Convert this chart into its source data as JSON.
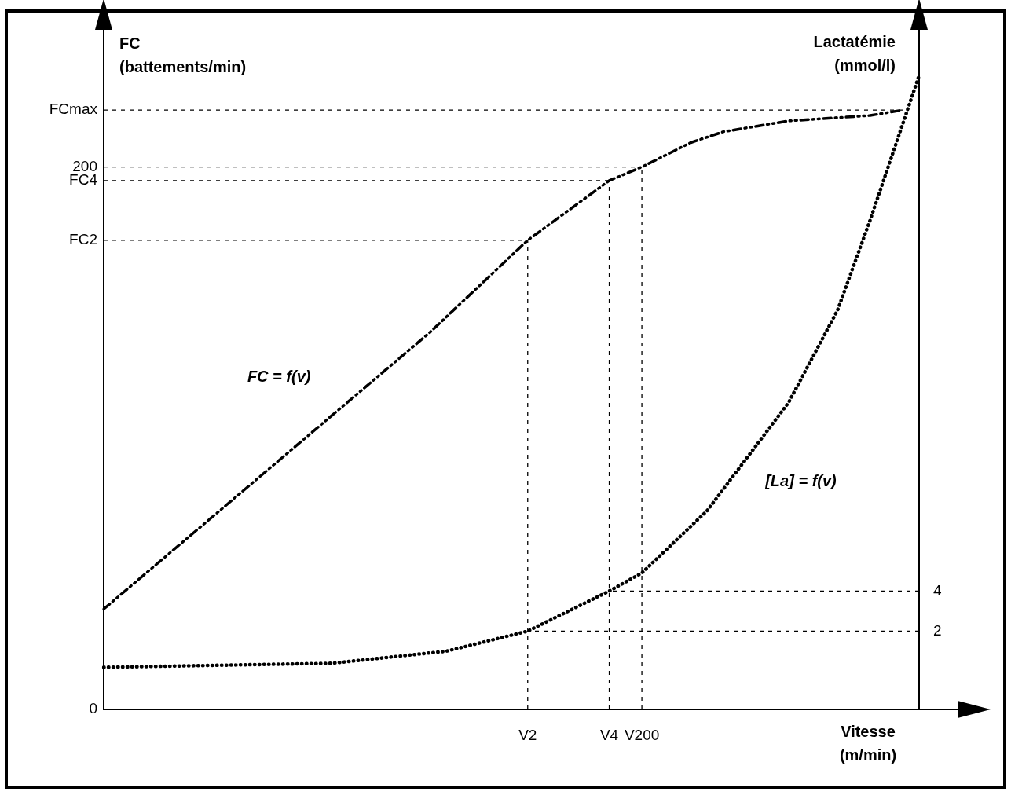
{
  "chart_data": {
    "type": "line",
    "ylabel": "FC\n(battements/min)",
    "y2label": "Lactatémie\n(mmol/l)",
    "xlabel": "Vitesse\n(m/min)",
    "categories": [
      null,
      null,
      null,
      null,
      null,
      null,
      null,
      null,
      null,
      null,
      null,
      null,
      null,
      null,
      null,
      null,
      null,
      null,
      null,
      null,
      null,
      null,
      null,
      null,
      null,
      null,
      "V2",
      null,
      null,
      null,
      null,
      "V4",
      null,
      "V200",
      null,
      null,
      null,
      null,
      null,
      null,
      null,
      null,
      null,
      null,
      null,
      null,
      null,
      null,
      null,
      null,
      null
    ],
    "ylim": [
      0,
      250
    ],
    "yticks": [
      0,
      {
        "value": 173,
        "label": "FC2"
      },
      {
        "value": 195,
        "label": "FC4"
      },
      200,
      {
        "value": 221,
        "label": "FCmax"
      }
    ],
    "y2lim": [
      -1.9,
      31.9
    ],
    "y2ticks": [
      4,
      2
    ],
    "legend": false,
    "marker": "none",
    "ref_lines": [
      {
        "axis": "y",
        "value": 221,
        "color": "#000000",
        "line_style": "dashed"
      },
      {
        "axis": "y",
        "value": 200,
        "color": "#000000",
        "line_style": "dashed"
      },
      {
        "axis": "y",
        "value": 195,
        "color": "#000000",
        "line_style": "dashed"
      },
      {
        "axis": "y",
        "value": 173,
        "color": "#000000",
        "line_style": "dashed"
      },
      {
        "axis": "x",
        "value": "V2",
        "color": "#000000",
        "line_style": "dashed"
      },
      {
        "axis": "x",
        "value": "V4",
        "color": "#000000",
        "line_style": "dashed"
      },
      {
        "axis": "x",
        "value": "V200",
        "color": "#000000",
        "line_style": "dashed"
      },
      {
        "axis": "y2",
        "value": 4,
        "color": "#000000",
        "line_style": "dashed"
      },
      {
        "axis": "y2",
        "value": 2,
        "color": "#000000",
        "line_style": "dashed"
      }
    ],
    "annotations": [
      "FC = f(v)",
      "[La] = f(v)"
    ],
    "series": [
      {
        "color": "#000000",
        "line_style": "dashed",
        "values": [
          37,
          null,
          null,
          null,
          null,
          null,
          null,
          null,
          null,
          null,
          88,
          null,
          null,
          null,
          null,
          null,
          null,
          null,
          null,
          null,
          139,
          null,
          null,
          null,
          null,
          null,
          173,
          null,
          null,
          null,
          null,
          195,
          null,
          200,
          null,
          null,
          209,
          null,
          213,
          null,
          null,
          null,
          217,
          null,
          null,
          null,
          null,
          219,
          null,
          221,
          null
        ]
      },
      {
        "color": "#000000",
        "line_style": "dotted",
        "axis": "y2",
        "values": [
          0.2,
          null,
          null,
          null,
          null,
          null,
          null,
          null,
          null,
          null,
          null,
          null,
          null,
          null,
          0.4,
          null,
          null,
          null,
          null,
          null,
          null,
          1.0,
          null,
          null,
          null,
          null,
          2,
          null,
          null,
          null,
          null,
          4,
          null,
          4.9,
          null,
          null,
          null,
          8.0,
          null,
          null,
          null,
          null,
          13.4,
          null,
          null,
          18,
          null,
          22.5,
          null,
          null,
          29.7
        ]
      }
    ]
  }
}
